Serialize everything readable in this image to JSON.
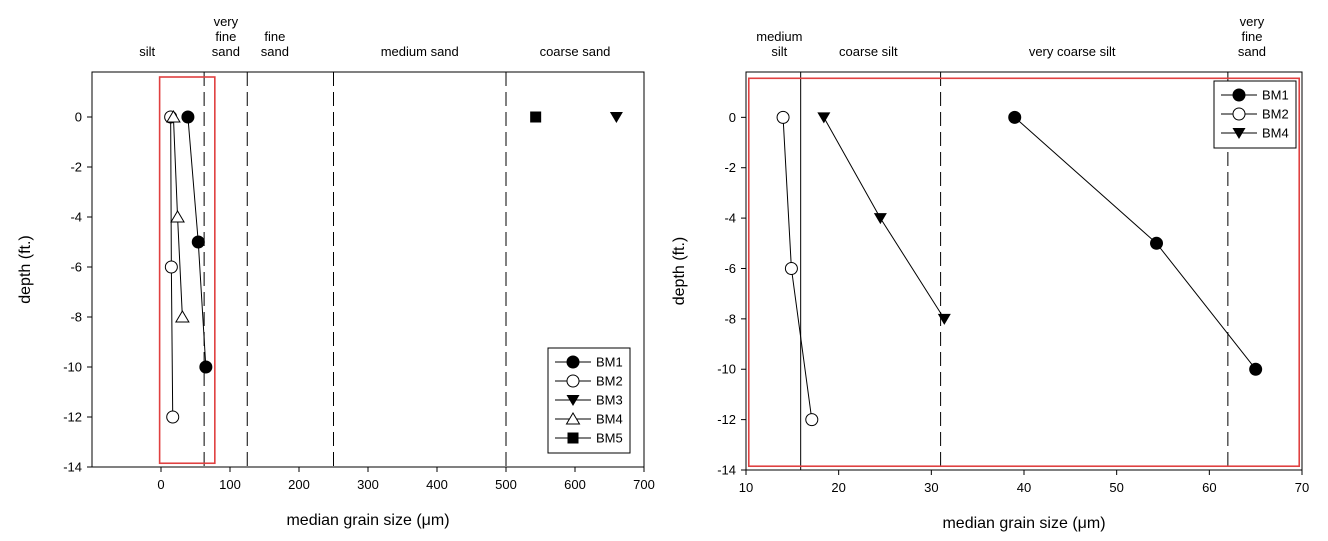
{
  "chart_data": [
    {
      "type": "scatter",
      "xlabel": "median grain size (μm)",
      "ylabel": "depth (ft.)",
      "xlim": [
        -100,
        700
      ],
      "ylim": [
        -14,
        1.8
      ],
      "xticks": [
        0,
        100,
        200,
        300,
        400,
        500,
        600,
        700
      ],
      "yticks": [
        0,
        -2,
        -4,
        -6,
        -8,
        -10,
        -12,
        -14
      ],
      "boundaries": [
        {
          "x": 62.5,
          "style": "dashed"
        },
        {
          "x": 125,
          "style": "dashed"
        },
        {
          "x": 250,
          "style": "dashed"
        },
        {
          "x": 500,
          "style": "dashed"
        }
      ],
      "zone_labels": [
        {
          "lines": [
            "silt"
          ],
          "x": -20
        },
        {
          "lines": [
            "very",
            "fine",
            "sand"
          ],
          "x": 94
        },
        {
          "lines": [
            "fine",
            "sand"
          ],
          "x": 165
        },
        {
          "lines": [
            "medium sand"
          ],
          "x": 375
        },
        {
          "lines": [
            "coarse sand"
          ],
          "x": 600
        }
      ],
      "highlight_box": {
        "x": [
          -2,
          78
        ],
        "y": [
          -13.85,
          1.6
        ],
        "color": "#e04040"
      },
      "legend": {
        "position": "bottom-right"
      },
      "series": [
        {
          "name": "BM1",
          "marker": "circle-filled",
          "points": [
            [
              39,
              0
            ],
            [
              54,
              -5
            ],
            [
              65,
              -10
            ]
          ]
        },
        {
          "name": "BM2",
          "marker": "circle-open",
          "points": [
            [
              14,
              0
            ],
            [
              15,
              -6
            ],
            [
              17,
              -12
            ]
          ]
        },
        {
          "name": "BM3",
          "marker": "triangle-down-filled",
          "points": [
            [
              660,
              0
            ]
          ]
        },
        {
          "name": "BM4",
          "marker": "triangle-up-open",
          "points": [
            [
              18,
              0
            ],
            [
              24,
              -4
            ],
            [
              31,
              -8
            ]
          ]
        },
        {
          "name": "BM5",
          "marker": "square-filled",
          "points": [
            [
              543,
              0
            ]
          ]
        }
      ]
    },
    {
      "type": "scatter",
      "xlabel": "median grain size (μm)",
      "ylabel": "depth (ft.)",
      "xlim": [
        10,
        70
      ],
      "ylim": [
        -14,
        1.8
      ],
      "xticks": [
        10,
        20,
        30,
        40,
        50,
        60,
        70
      ],
      "yticks": [
        0,
        -2,
        -4,
        -6,
        -8,
        -10,
        -12,
        -14
      ],
      "boundaries": [
        {
          "x": 15.9,
          "style": "solid"
        },
        {
          "x": 31,
          "style": "dashed"
        },
        {
          "x": 62,
          "style": "dashed"
        }
      ],
      "zone_labels": [
        {
          "lines": [
            "medium",
            "silt"
          ],
          "x": 13.6
        },
        {
          "lines": [
            "coarse silt"
          ],
          "x": 23.2
        },
        {
          "lines": [
            "very coarse silt"
          ],
          "x": 45.2
        },
        {
          "lines": [
            "very",
            "fine",
            "sand"
          ],
          "x": 64.6
        }
      ],
      "highlight_box": {
        "x": [
          10.3,
          69.7
        ],
        "y": [
          -13.85,
          1.55
        ],
        "color": "#e04040"
      },
      "legend": {
        "position": "top-right"
      },
      "series": [
        {
          "name": "BM1",
          "marker": "circle-filled",
          "points": [
            [
              39,
              0
            ],
            [
              54.3,
              -5
            ],
            [
              65,
              -10
            ]
          ]
        },
        {
          "name": "BM2",
          "marker": "circle-open",
          "points": [
            [
              14,
              0
            ],
            [
              14.9,
              -6
            ],
            [
              17.1,
              -12
            ]
          ]
        },
        {
          "name": "BM4",
          "marker": "triangle-down-filled",
          "points": [
            [
              18.4,
              0
            ],
            [
              24.5,
              -4
            ],
            [
              31.4,
              -8
            ]
          ]
        }
      ]
    }
  ]
}
